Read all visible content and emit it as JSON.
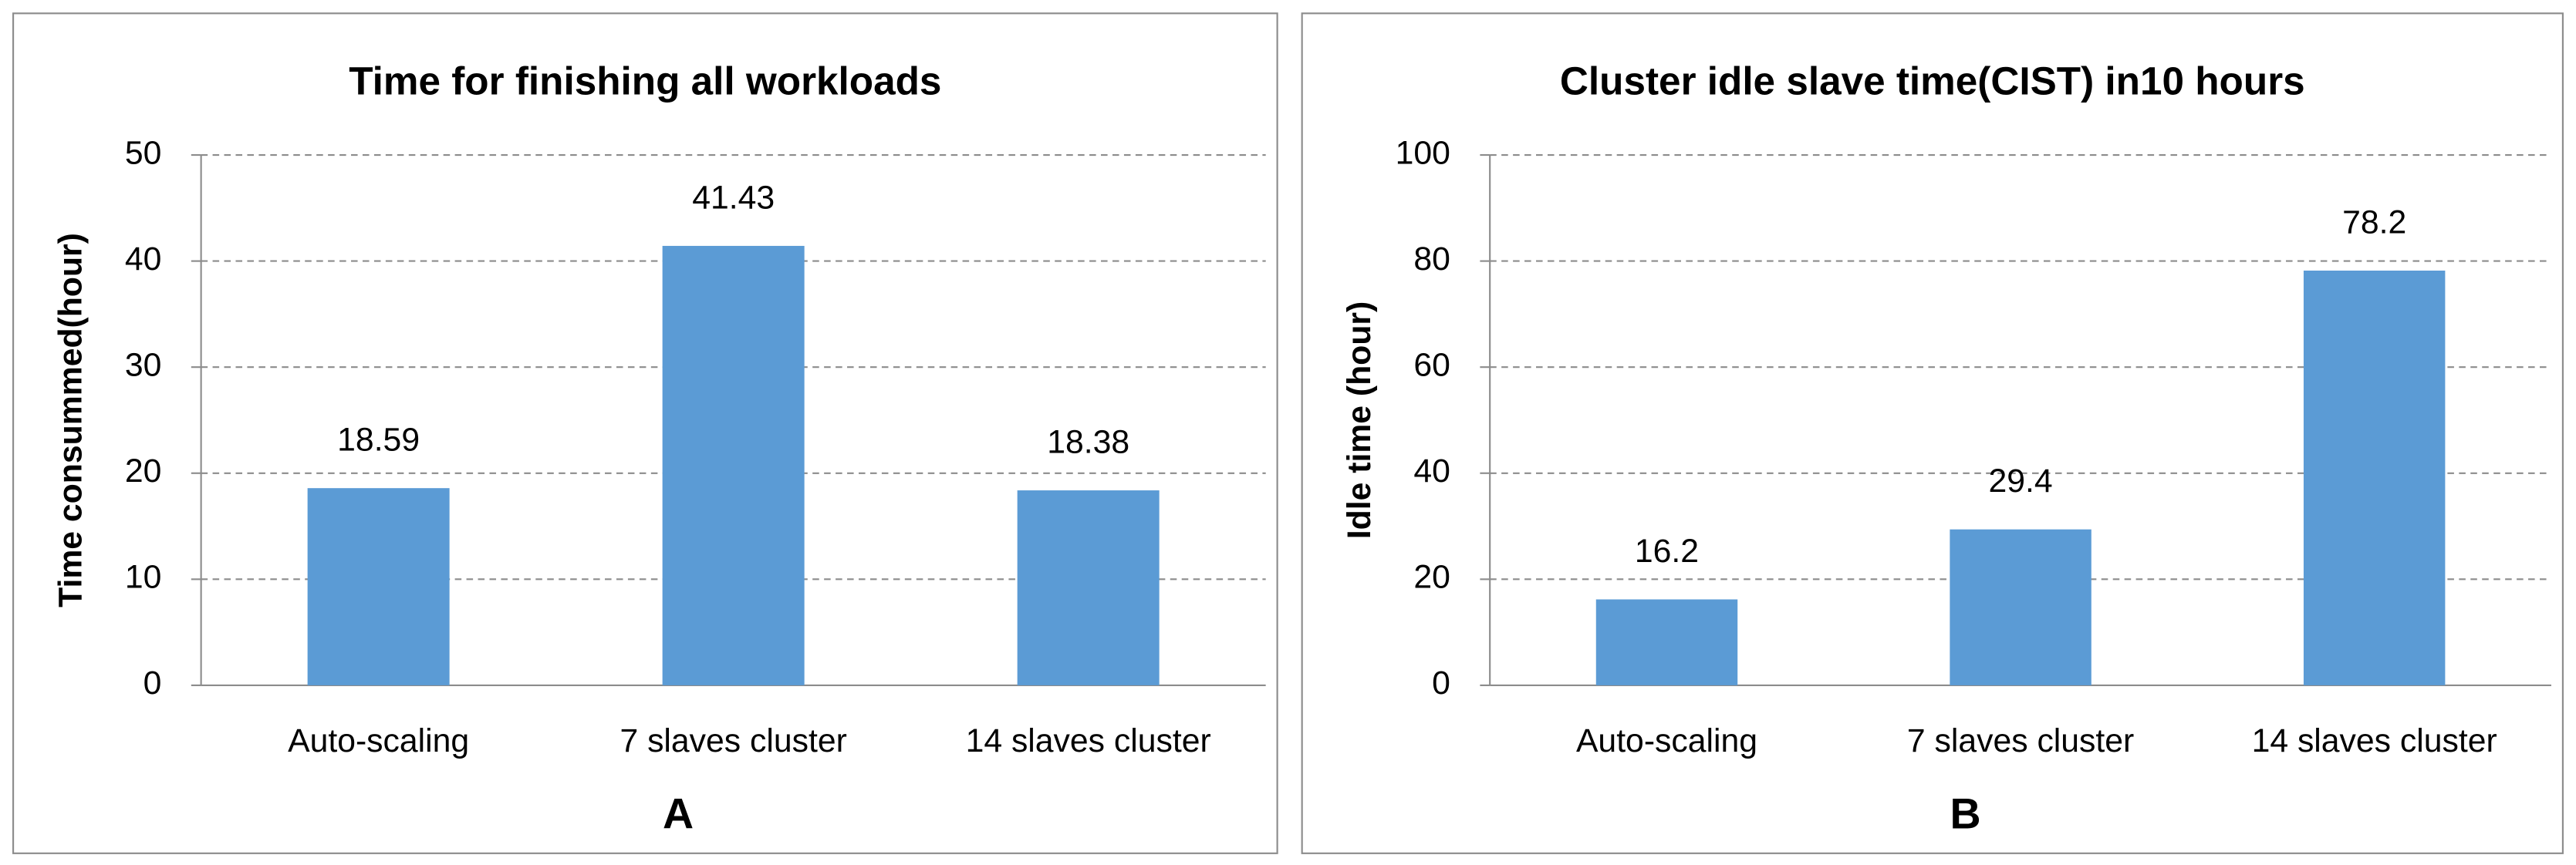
{
  "chart_data": [
    {
      "type": "bar",
      "title": "Time for finishing all workloads",
      "y_label": "Time consummed(hour)",
      "categories": [
        "Auto-scaling",
        "7 slaves cluster",
        "14 slaves cluster"
      ],
      "values": [
        18.59,
        41.43,
        18.38
      ],
      "color": "#5b9bd5",
      "ylim": [
        0,
        50
      ],
      "yticks": [
        0,
        10,
        20,
        30,
        40,
        50
      ],
      "grid": true,
      "annotation": "A"
    },
    {
      "type": "bar",
      "title": "Cluster idle slave time(CIST) in10 hours",
      "y_label": "Idle time (hour)",
      "categories": [
        "Auto-scaling",
        "7 slaves cluster",
        "14 slaves cluster"
      ],
      "values": [
        16.2,
        29.4,
        78.2
      ],
      "color": "#5b9bd5",
      "ylim": [
        0,
        100
      ],
      "yticks": [
        0,
        20,
        40,
        60,
        80,
        100
      ],
      "grid": true,
      "annotation": "B"
    }
  ]
}
